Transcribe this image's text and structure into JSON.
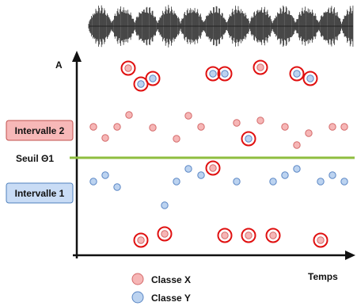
{
  "title": "",
  "axes": {
    "y_label": "A",
    "x_label": "Temps"
  },
  "boxes": {
    "interval2": {
      "label": "Intervalle 2",
      "fill": "#f7b8b8",
      "stroke": "#c0504d",
      "text_color": "#7a1f1f"
    },
    "interval1": {
      "label": "Intervalle 1",
      "fill": "#c9dcf5",
      "stroke": "#4f81bd",
      "text_color": "#1f3f7a"
    }
  },
  "threshold": {
    "label": "Seuil Θ1",
    "color": "#8fbe3f"
  },
  "legend": {
    "items": [
      {
        "label": "Classe X",
        "class": "X"
      },
      {
        "label": "Classe Y",
        "class": "Y"
      }
    ]
  },
  "colors": {
    "class_X_fill": "#f6b6b6",
    "class_X_stroke": "#d46a6a",
    "class_Y_fill": "#bcd3f0",
    "class_Y_stroke": "#5a86c4",
    "highlight_ring": "#e01010",
    "axis": "#111111"
  },
  "points": [
    {
      "t": 1,
      "c": "X",
      "band": "i2"
    },
    {
      "t": 2,
      "c": "X",
      "band": "i2"
    },
    {
      "t": 3,
      "c": "X",
      "band": "i2"
    },
    {
      "t": 4,
      "c": "X",
      "band": "i2"
    },
    {
      "t": 5,
      "c": "X",
      "band": "i2"
    },
    {
      "t": 6,
      "c": "X",
      "band": "i2"
    },
    {
      "t": 7,
      "c": "X",
      "band": "i2"
    },
    {
      "t": 8,
      "c": "X",
      "band": "i2"
    },
    {
      "t": 9,
      "c": "X",
      "band": "i2"
    },
    {
      "t": 10,
      "c": "X",
      "band": "i2"
    },
    {
      "t": 11,
      "c": "X",
      "band": "i2"
    },
    {
      "t": 12,
      "c": "X",
      "band": "i2"
    },
    {
      "t": 13,
      "c": "X",
      "band": "i2"
    },
    {
      "t": 14,
      "c": "X",
      "band": "i2"
    },
    {
      "t": 15,
      "c": "X",
      "band": "i2"
    },
    {
      "t": 16,
      "c": "X",
      "band": "i2"
    },
    {
      "t": 17,
      "c": "X",
      "band": "i2"
    },
    {
      "t": 18,
      "c": "X",
      "band": "i2"
    },
    {
      "t": 19,
      "c": "X",
      "band": "i2"
    },
    {
      "t": 20,
      "c": "X",
      "band": "i2"
    }
  ]
}
